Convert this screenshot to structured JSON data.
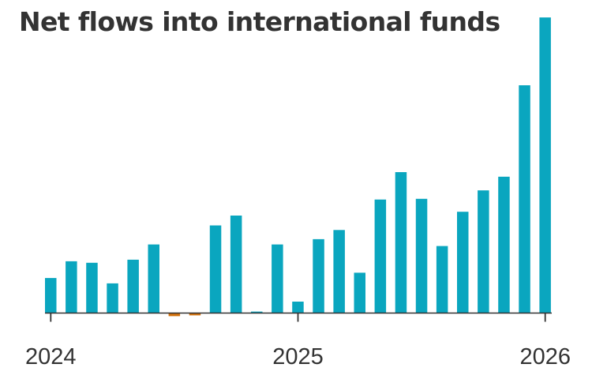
{
  "chart_data": {
    "type": "bar",
    "title": "Net flows into international funds",
    "xlabel": "",
    "ylabel": "",
    "x_tick_labels": [
      "2024",
      "2025",
      "2026"
    ],
    "x_tick_positions": [
      "2024-01",
      "2025-01",
      "2026-01"
    ],
    "categories": [
      "2024-01",
      "2024-02",
      "2024-03",
      "2024-04",
      "2024-05",
      "2024-06",
      "2024-07",
      "2024-08",
      "2024-09",
      "2024-10",
      "2024-11",
      "2024-12",
      "2025-01",
      "2025-02",
      "2025-03",
      "2025-04",
      "2025-05",
      "2025-06",
      "2025-07",
      "2025-08",
      "2025-09",
      "2025-10",
      "2025-11",
      "2025-12",
      "2026-01"
    ],
    "values": [
      4.6,
      6.8,
      6.6,
      3.9,
      7.0,
      9.0,
      -0.4,
      -0.3,
      11.5,
      12.8,
      0.2,
      9.0,
      1.5,
      9.7,
      10.9,
      5.3,
      14.9,
      18.5,
      15.0,
      8.8,
      13.3,
      16.1,
      17.9,
      29.9,
      38.8
    ],
    "colors": {
      "positive": "#0aa6bf",
      "negative": "#d2710c",
      "axis": "#333333"
    },
    "grid": false,
    "legend": "none"
  }
}
